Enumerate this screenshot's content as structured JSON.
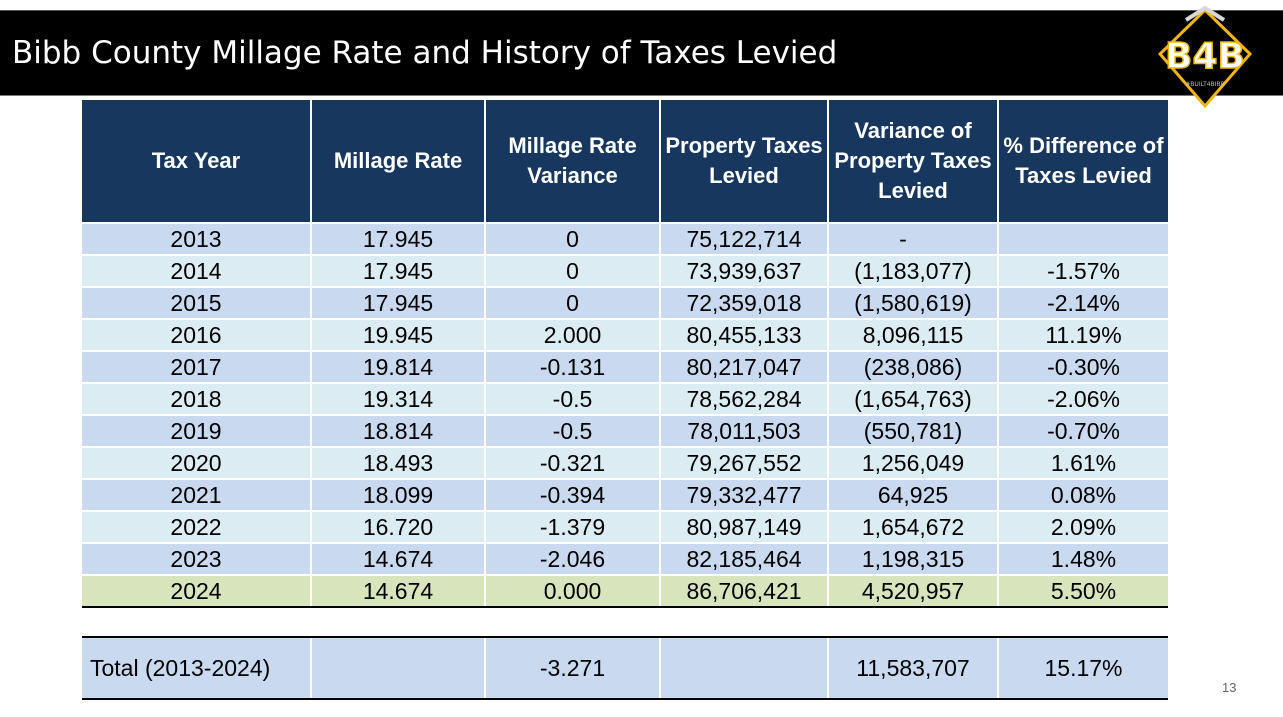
{
  "header": {
    "title": "Bibb County Millage Rate and History of Taxes Levied",
    "logo_text": "B4B",
    "logo_tagline": "#BUILT4BIBB"
  },
  "table": {
    "columns": [
      "Tax Year",
      "Millage Rate",
      "Millage Rate Variance",
      "Property Taxes Levied",
      "Variance of Property Taxes Levied",
      "% Difference of Taxes Levied"
    ],
    "rows": [
      {
        "year": "2013",
        "rate": "17.945",
        "rate_var": "0",
        "levied": "75,122,714",
        "levied_var": "-",
        "pct": ""
      },
      {
        "year": "2014",
        "rate": "17.945",
        "rate_var": "0",
        "levied": "73,939,637",
        "levied_var": "(1,183,077)",
        "pct": "-1.57%"
      },
      {
        "year": "2015",
        "rate": "17.945",
        "rate_var": "0",
        "levied": "72,359,018",
        "levied_var": "(1,580,619)",
        "pct": "-2.14%"
      },
      {
        "year": "2016",
        "rate": "19.945",
        "rate_var": "2.000",
        "levied": "80,455,133",
        "levied_var": "8,096,115",
        "pct": "11.19%"
      },
      {
        "year": "2017",
        "rate": "19.814",
        "rate_var": "-0.131",
        "levied": "80,217,047",
        "levied_var": "(238,086)",
        "pct": "-0.30%"
      },
      {
        "year": "2018",
        "rate": "19.314",
        "rate_var": "-0.5",
        "levied": "78,562,284",
        "levied_var": "(1,654,763)",
        "pct": "-2.06%"
      },
      {
        "year": "2019",
        "rate": "18.814",
        "rate_var": "-0.5",
        "levied": "78,011,503",
        "levied_var": "(550,781)",
        "pct": "-0.70%"
      },
      {
        "year": "2020",
        "rate": "18.493",
        "rate_var": "-0.321",
        "levied": "79,267,552",
        "levied_var": "1,256,049",
        "pct": "1.61%"
      },
      {
        "year": "2021",
        "rate": "18.099",
        "rate_var": "-0.394",
        "levied": "79,332,477",
        "levied_var": "64,925",
        "pct": "0.08%"
      },
      {
        "year": "2022",
        "rate": "16.720",
        "rate_var": "-1.379",
        "levied": "80,987,149",
        "levied_var": "1,654,672",
        "pct": "2.09%"
      },
      {
        "year": "2023",
        "rate": "14.674",
        "rate_var": "-2.046",
        "levied": "82,185,464",
        "levied_var": "1,198,315",
        "pct": "1.48%"
      },
      {
        "year": "2024",
        "rate": "14.674",
        "rate_var": "0.000",
        "levied": "86,706,421",
        "levied_var": "4,520,957",
        "pct": "5.50%"
      }
    ],
    "total": {
      "label": "Total (2013-2024)",
      "rate": "",
      "rate_var": "-3.271",
      "levied": "",
      "levied_var": "11,583,707",
      "pct": "15.17%"
    }
  },
  "colors": {
    "header_bg": "#17375e",
    "row_odd": "#c9daf0",
    "row_even": "#dcecf3",
    "highlight_row": "#d8e4bc",
    "negative": "#ff0000",
    "logo_gold": "#f2b705"
  },
  "footer": {
    "page_number": "13"
  }
}
